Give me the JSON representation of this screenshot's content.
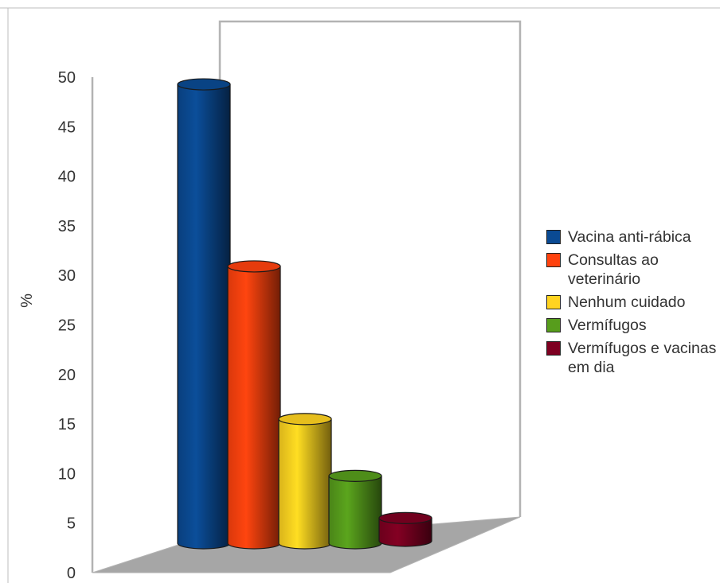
{
  "chart_data": {
    "type": "bar",
    "style": "3d-cylinder",
    "ylabel": "%",
    "ylim": [
      0,
      50
    ],
    "yticks": [
      0,
      5,
      10,
      15,
      20,
      25,
      30,
      35,
      40,
      45,
      50
    ],
    "grid": false,
    "legend_position": "right",
    "series": [
      {
        "name": "Vacina anti-rábica",
        "value": 48.4,
        "color": "#0a4a93"
      },
      {
        "name": "Consultas ao veterinário",
        "value": 29.2,
        "color": "#ff420e"
      },
      {
        "name": "Nenhum cuidado",
        "value": 13.1,
        "color": "#ffd320"
      },
      {
        "name": "Vermífugos",
        "value": 7.1,
        "color": "#579d1c"
      },
      {
        "name": "Vermífugos e vacinas em dia",
        "value": 2.4,
        "color": "#7e0021"
      }
    ]
  }
}
